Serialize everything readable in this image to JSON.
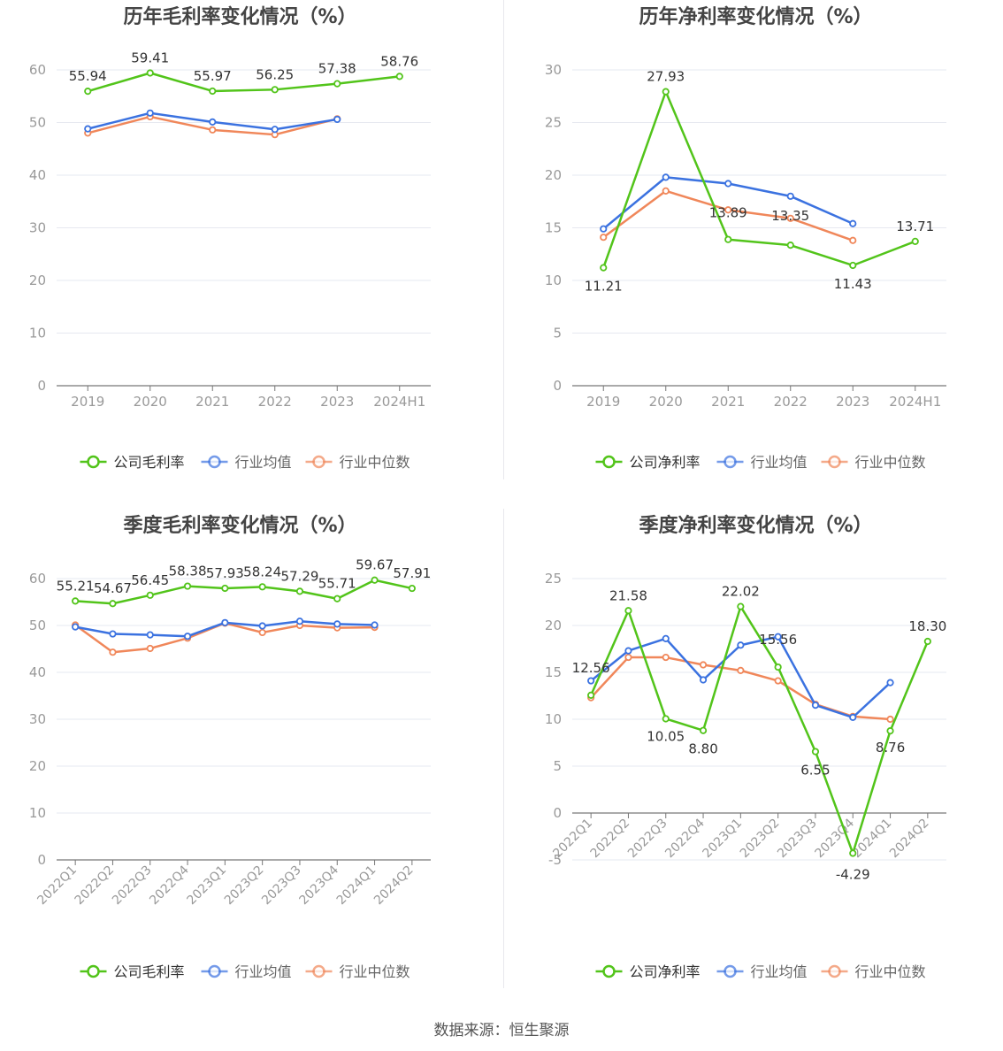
{
  "source_text": "数据来源：恒生聚源",
  "colors": {
    "company": "#52c41a",
    "avg": "#3b72e0",
    "median": "#f0875a",
    "axis": "#666666",
    "grid": "#e6e8f0",
    "tick": "#999999",
    "label": "#333333"
  },
  "legend_icon": "circle-line-marker",
  "chart_data": [
    {
      "type": "line",
      "title": "历年毛利率变化情况（%）",
      "categories": [
        "2019",
        "2020",
        "2021",
        "2022",
        "2023",
        "2024H1"
      ],
      "ylim": [
        0,
        60
      ],
      "yticks": [
        0,
        10,
        20,
        30,
        40,
        50,
        60
      ],
      "grid": true,
      "legend_position": "bottom",
      "series": [
        {
          "name": "公司毛利率",
          "color": "#52c41a",
          "values": [
            55.94,
            59.41,
            55.97,
            56.25,
            57.38,
            58.76
          ],
          "labels": [
            "55.94",
            "59.41",
            "55.97",
            "56.25",
            "57.38",
            "58.76"
          ]
        },
        {
          "name": "行业均值",
          "color": "#3b72e0",
          "values": [
            48.8,
            51.8,
            50.1,
            48.7,
            50.6,
            null
          ]
        },
        {
          "name": "行业中位数",
          "color": "#f0875a",
          "values": [
            48.0,
            51.1,
            48.6,
            47.7,
            50.7,
            null
          ]
        }
      ]
    },
    {
      "type": "line",
      "title": "历年净利率变化情况（%）",
      "categories": [
        "2019",
        "2020",
        "2021",
        "2022",
        "2023",
        "2024H1"
      ],
      "ylim": [
        0,
        30
      ],
      "yticks": [
        0,
        5,
        10,
        15,
        20,
        25,
        30
      ],
      "grid": true,
      "legend_position": "bottom",
      "series": [
        {
          "name": "公司净利率",
          "color": "#52c41a",
          "values": [
            11.21,
            27.93,
            13.89,
            13.35,
            11.43,
            13.71
          ],
          "labels": [
            "11.21",
            "27.93",
            "13.89",
            "13.35",
            "11.43",
            "13.71"
          ]
        },
        {
          "name": "行业均值",
          "color": "#3b72e0",
          "values": [
            14.9,
            19.8,
            19.2,
            18.0,
            15.4,
            null
          ]
        },
        {
          "name": "行业中位数",
          "color": "#f0875a",
          "values": [
            14.1,
            18.5,
            16.7,
            15.9,
            13.8,
            null
          ]
        }
      ]
    },
    {
      "type": "line",
      "title": "季度毛利率变化情况（%）",
      "categories": [
        "2022Q1",
        "2022Q2",
        "2022Q3",
        "2022Q4",
        "2023Q1",
        "2023Q2",
        "2023Q3",
        "2023Q4",
        "2024Q1",
        "2024Q2"
      ],
      "ylim": [
        0,
        60
      ],
      "yticks": [
        0,
        10,
        20,
        30,
        40,
        50,
        60
      ],
      "grid": true,
      "legend_position": "bottom",
      "series": [
        {
          "name": "公司毛利率",
          "color": "#52c41a",
          "values": [
            55.21,
            54.67,
            56.45,
            58.38,
            57.93,
            58.24,
            57.29,
            55.71,
            59.67,
            57.91
          ],
          "labels": [
            "55.21",
            "54.67",
            "56.45",
            "58.38",
            "57.93",
            "58.24",
            "57.29",
            "55.71",
            "59.67",
            "57.91"
          ]
        },
        {
          "name": "行业均值",
          "color": "#3b72e0",
          "values": [
            49.7,
            48.2,
            48.0,
            47.7,
            50.6,
            49.9,
            50.9,
            50.3,
            50.1,
            null
          ]
        },
        {
          "name": "行业中位数",
          "color": "#f0875a",
          "values": [
            50.1,
            44.3,
            45.1,
            47.3,
            50.5,
            48.5,
            50.0,
            49.5,
            49.6,
            null
          ]
        }
      ]
    },
    {
      "type": "line",
      "title": "季度净利率变化情况（%）",
      "categories": [
        "2022Q1",
        "2022Q2",
        "2022Q3",
        "2022Q4",
        "2023Q1",
        "2023Q2",
        "2023Q3",
        "2023Q4",
        "2024Q1",
        "2024Q2"
      ],
      "ylim": [
        -5,
        25
      ],
      "yticks": [
        -5,
        0,
        5,
        10,
        15,
        20,
        25
      ],
      "grid": true,
      "legend_position": "bottom",
      "series": [
        {
          "name": "公司净利率",
          "color": "#52c41a",
          "values": [
            12.56,
            21.58,
            10.05,
            8.8,
            22.02,
            15.56,
            6.55,
            -4.29,
            8.76,
            18.3
          ],
          "labels": [
            "12.56",
            "21.58",
            "10.05",
            "8.80",
            "22.02",
            "15.56",
            "6.55",
            "-4.29",
            "8.76",
            "18.30"
          ]
        },
        {
          "name": "行业均值",
          "color": "#3b72e0",
          "values": [
            14.1,
            17.3,
            18.6,
            14.2,
            17.9,
            18.8,
            11.5,
            10.2,
            13.9,
            null
          ]
        },
        {
          "name": "行业中位数",
          "color": "#f0875a",
          "values": [
            12.3,
            16.6,
            16.6,
            15.8,
            15.2,
            14.1,
            11.6,
            10.3,
            10.0,
            null
          ]
        }
      ]
    }
  ]
}
